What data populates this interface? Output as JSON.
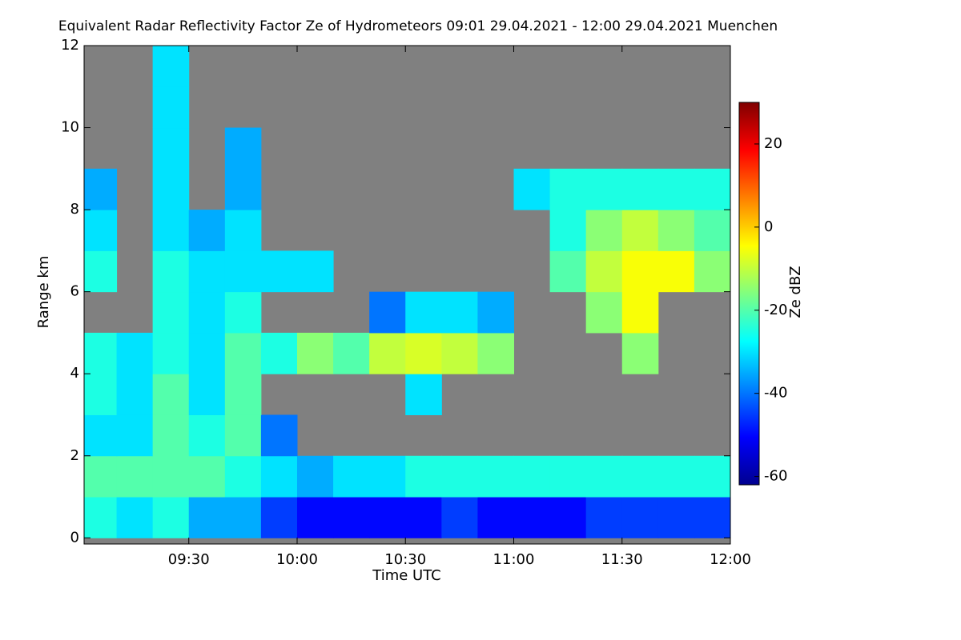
{
  "chart_data": {
    "type": "heatmap",
    "title": "Equivalent Radar Reflectivity Factor Ze of Hydrometeors   09:01 29.04.2021 - 12:00 29.04.2021 Muenchen",
    "x_label": "Time UTC",
    "y_label": "Range km",
    "colorbar_label": "Ze dBZ",
    "background_color": "#808080",
    "colormap": [
      "#00008f",
      "#0000ff",
      "#0080ff",
      "#00ffff",
      "#80ff80",
      "#ffff00",
      "#ff8000",
      "#ff0000",
      "#800000"
    ],
    "xlim": [
      9.0167,
      12.0
    ],
    "xticks": [
      {
        "value": 9.5,
        "label": "09:30"
      },
      {
        "value": 10.0,
        "label": "10:00"
      },
      {
        "value": 10.5,
        "label": "10:30"
      },
      {
        "value": 11.0,
        "label": "11:00"
      },
      {
        "value": 11.5,
        "label": "11:30"
      },
      {
        "value": 12.0,
        "label": "12:00"
      }
    ],
    "ylim": [
      -0.15,
      12
    ],
    "yticks": [
      0,
      2,
      4,
      6,
      8,
      10,
      12
    ],
    "clim": [
      -62,
      30
    ],
    "cticks": [
      -60,
      -40,
      -20,
      0,
      20
    ],
    "x_bins": [
      9.0167,
      9.1667,
      9.3333,
      9.5,
      9.6667,
      9.8333,
      10.0,
      10.1667,
      10.3333,
      10.5,
      10.6667,
      10.8333,
      11.0,
      11.1667,
      11.3333,
      11.5,
      11.6667,
      11.8333,
      12.0
    ],
    "y_bins": [
      0,
      1,
      2,
      3,
      4,
      5,
      6,
      7,
      8,
      9,
      10,
      11,
      12
    ],
    "values": [
      [
        -25,
        -30,
        -25,
        -35,
        -35,
        -45,
        -50,
        -50,
        -50,
        -50,
        -45,
        -50,
        -50,
        -50,
        -45,
        -45,
        -45,
        -45
      ],
      [
        -20,
        -20,
        -20,
        -20,
        -25,
        -30,
        -35,
        -30,
        -30,
        -25,
        -25,
        -25,
        -25,
        -25,
        -25,
        -25,
        -25,
        -25
      ],
      [
        -30,
        -30,
        -20,
        -25,
        -20,
        -40,
        null,
        null,
        null,
        null,
        null,
        null,
        null,
        null,
        null,
        null,
        null,
        null
      ],
      [
        -25,
        -30,
        -20,
        -30,
        -20,
        null,
        null,
        null,
        null,
        -30,
        null,
        null,
        null,
        null,
        null,
        null,
        null,
        null
      ],
      [
        -25,
        -30,
        -25,
        -30,
        -20,
        -25,
        -15,
        -20,
        -10,
        -8,
        -10,
        -15,
        null,
        null,
        null,
        -15,
        null,
        null
      ],
      [
        null,
        null,
        -25,
        -30,
        -25,
        null,
        null,
        null,
        -40,
        -30,
        -30,
        -35,
        null,
        null,
        -15,
        -5,
        null,
        null
      ],
      [
        -25,
        null,
        -25,
        -30,
        -30,
        -30,
        -30,
        null,
        null,
        null,
        null,
        null,
        null,
        -20,
        -10,
        -5,
        -5,
        -15
      ],
      [
        -30,
        null,
        -30,
        -35,
        -30,
        null,
        null,
        null,
        null,
        null,
        null,
        null,
        null,
        -25,
        -15,
        -10,
        -15,
        -20
      ],
      [
        -35,
        null,
        -30,
        null,
        -35,
        null,
        null,
        null,
        null,
        null,
        null,
        null,
        -30,
        -25,
        -25,
        -25,
        -25,
        -25
      ],
      [
        null,
        null,
        -30,
        null,
        -35,
        null,
        null,
        null,
        null,
        null,
        null,
        null,
        null,
        null,
        null,
        null,
        null,
        null
      ],
      [
        null,
        null,
        -30,
        null,
        null,
        null,
        null,
        null,
        null,
        null,
        null,
        null,
        null,
        null,
        null,
        null,
        null,
        null
      ],
      [
        null,
        null,
        -30,
        null,
        null,
        null,
        null,
        null,
        null,
        null,
        null,
        null,
        null,
        null,
        null,
        null,
        null,
        null
      ]
    ]
  }
}
